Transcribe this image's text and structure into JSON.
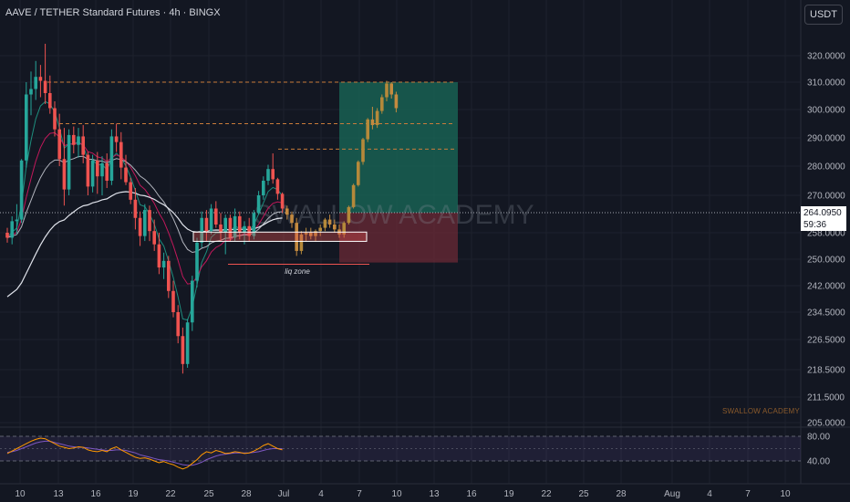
{
  "header": {
    "title": "AAVE / TETHER Standard Futures · 4h · BINGX",
    "currency": "USDT"
  },
  "price_tag": {
    "price": "264.0950",
    "countdown": "59:36"
  },
  "watermark": {
    "large": "SWALLOW ACADEMY",
    "small": "SWALLOW ACADEMY"
  },
  "annotation": {
    "liq_zone": "liq zone"
  },
  "colors": {
    "background": "#131722",
    "candle_up": "#26a69a",
    "candle_down": "#ef5350",
    "projection": "#b5893a",
    "ma_white": "#e0e3eb",
    "ma_red": "#c2185b",
    "ma_teal": "#1e8e7e",
    "target_zone": "#1a6b5a",
    "stop_zone": "#6b2a35",
    "level_lines": "#c97b3a",
    "rsi_line": "#ff9800",
    "rsi_ma": "#7e57c2"
  },
  "chart_data": {
    "type": "candlestick",
    "symbol": "AAVE / TETHER Standard Futures",
    "interval": "4h",
    "exchange": "BINGX",
    "y_ticks": [
      320,
      310,
      300,
      290,
      280,
      270,
      258,
      250,
      242,
      234.5,
      226.5,
      218.5,
      211.5,
      205
    ],
    "y_tick_labels": [
      "320.0000",
      "310.0000",
      "300.0000",
      "290.0000",
      "280.0000",
      "270.0000",
      "258.0000",
      "250.0000",
      "242.0000",
      "234.5000",
      "226.5000",
      "218.5000",
      "211.5000",
      "205.0000"
    ],
    "x_tick_labels": [
      "10",
      "13",
      "16",
      "19",
      "22",
      "25",
      "28",
      "Jul",
      "4",
      "7",
      "10",
      "13",
      "16",
      "19",
      "22",
      "25",
      "28",
      "Aug",
      "4",
      "7",
      "10"
    ],
    "last_price": 264.095,
    "horizontal_levels": [
      310,
      295,
      286
    ],
    "candles": [
      [
        258,
        259.5,
        255.0,
        256.5
      ],
      [
        256.5,
        263.0,
        254.5,
        261.5
      ],
      [
        261.5,
        267.0,
        257.5,
        262.0
      ],
      [
        262.0,
        282.5,
        261.0,
        282.0
      ],
      [
        282.0,
        310.0,
        279.5,
        305.5
      ],
      [
        305.5,
        314.0,
        298.0,
        307.5
      ],
      [
        307.5,
        318.0,
        303.5,
        312.0
      ],
      [
        312.0,
        316.5,
        304.5,
        310.5
      ],
      [
        310.5,
        324.5,
        302.0,
        306.0
      ],
      [
        306.0,
        312.5,
        298.5,
        300.5
      ],
      [
        300.5,
        303.0,
        290.5,
        293.0
      ],
      [
        293.0,
        298.5,
        280.0,
        282.5
      ],
      [
        282.5,
        293.5,
        266.5,
        272.0
      ],
      [
        272.0,
        293.0,
        270.0,
        291.0
      ],
      [
        291.0,
        294.0,
        284.5,
        287.5
      ],
      [
        287.5,
        293.5,
        283.0,
        290.5
      ],
      [
        290.5,
        294.5,
        281.0,
        284.0
      ],
      [
        284.0,
        285.0,
        270.0,
        273.0
      ],
      [
        273.0,
        284.0,
        271.0,
        282.0
      ],
      [
        282.0,
        285.0,
        270.5,
        276.5
      ],
      [
        276.5,
        283.5,
        270.0,
        281.0
      ],
      [
        281.0,
        284.5,
        272.5,
        275.0
      ],
      [
        275.0,
        293.0,
        273.5,
        290.5
      ],
      [
        290.5,
        295.0,
        285.0,
        288.5
      ],
      [
        288.5,
        292.0,
        275.5,
        279.5
      ],
      [
        279.5,
        284.0,
        273.5,
        274.5
      ],
      [
        274.5,
        276.0,
        267.0,
        268.5
      ],
      [
        268.5,
        272.5,
        259.0,
        262.5
      ],
      [
        262.5,
        264.5,
        254.0,
        257.0
      ],
      [
        257.0,
        267.0,
        255.5,
        265.0
      ],
      [
        265.0,
        266.5,
        255.5,
        258.5
      ],
      [
        258.5,
        262.0,
        252.5,
        254.5
      ],
      [
        254.5,
        258.0,
        245.5,
        247.5
      ],
      [
        247.5,
        252.0,
        244.0,
        249.5
      ],
      [
        249.5,
        251.0,
        238.5,
        240.5
      ],
      [
        240.5,
        243.5,
        233.0,
        234.5
      ],
      [
        234.5,
        236.5,
        225.5,
        227.5
      ],
      [
        227.5,
        230.0,
        217.5,
        220.0
      ],
      [
        220.0,
        232.5,
        219.0,
        231.5
      ],
      [
        231.5,
        245.0,
        229.0,
        243.5
      ],
      [
        243.5,
        256.5,
        241.5,
        255.0
      ],
      [
        255.0,
        264.5,
        253.5,
        262.5
      ],
      [
        262.5,
        265.0,
        255.5,
        258.5
      ],
      [
        258.5,
        267.0,
        257.5,
        265.5
      ],
      [
        265.5,
        268.0,
        259.5,
        260.5
      ],
      [
        260.5,
        264.0,
        255.5,
        258.0
      ],
      [
        258.0,
        263.5,
        251.5,
        262.5
      ],
      [
        262.5,
        263.5,
        255.5,
        256.5
      ],
      [
        256.5,
        265.5,
        255.5,
        263.0
      ],
      [
        263.0,
        264.5,
        256.0,
        258.0
      ],
      [
        258.0,
        261.5,
        254.5,
        260.0
      ],
      [
        260.0,
        262.5,
        255.5,
        257.0
      ],
      [
        257.0,
        265.0,
        256.0,
        264.0
      ],
      [
        264.0,
        271.5,
        263.5,
        270.0
      ],
      [
        270.0,
        276.5,
        268.5,
        275.0
      ],
      [
        275.0,
        280.5,
        273.5,
        279.0
      ],
      [
        279.0,
        284.5,
        274.0,
        275.5
      ],
      [
        275.5,
        276.0,
        268.5,
        270.5
      ],
      [
        270.5,
        271.0,
        264.0,
        265.5
      ]
    ],
    "projection": [
      [
        265.5,
        266.5,
        262.0,
        263.5
      ],
      [
        263.5,
        264.5,
        259.5,
        261.0
      ],
      [
        261.0,
        262.5,
        251.0,
        252.5
      ],
      [
        252.5,
        258.5,
        251.5,
        257.5
      ],
      [
        257.5,
        259.5,
        255.5,
        258.0
      ],
      [
        258.0,
        259.5,
        256.0,
        257.0
      ],
      [
        257.0,
        259.0,
        255.5,
        258.5
      ],
      [
        258.5,
        260.5,
        257.0,
        259.5
      ],
      [
        259.5,
        262.5,
        258.5,
        262.0
      ],
      [
        262.0,
        263.5,
        259.5,
        260.5
      ],
      [
        260.5,
        262.0,
        258.0,
        259.0
      ],
      [
        259.0,
        260.5,
        256.5,
        257.5
      ],
      [
        257.5,
        261.5,
        256.5,
        261.0
      ],
      [
        261.0,
        266.5,
        260.5,
        266.0
      ],
      [
        266.0,
        274.0,
        265.5,
        273.5
      ],
      [
        273.5,
        282.0,
        273.0,
        281.5
      ],
      [
        281.5,
        290.0,
        280.5,
        289.5
      ],
      [
        289.5,
        297.0,
        288.5,
        296.5
      ],
      [
        296.5,
        301.0,
        293.0,
        294.5
      ],
      [
        294.5,
        300.5,
        293.5,
        299.5
      ],
      [
        299.5,
        305.5,
        298.5,
        304.5
      ],
      [
        304.5,
        310.5,
        303.0,
        309.5
      ],
      [
        309.5,
        310.0,
        304.0,
        305.5
      ],
      [
        305.5,
        306.5,
        299.0,
        300.5
      ]
    ],
    "rsi": {
      "levels": [
        80,
        40
      ],
      "level_labels": [
        "80.00",
        "40.00"
      ],
      "values": [
        52,
        56,
        60,
        64,
        68,
        72,
        75,
        77,
        76,
        72,
        68,
        64,
        62,
        60,
        61,
        63,
        62,
        58,
        56,
        55,
        57,
        55,
        60,
        63,
        58,
        54,
        50,
        46,
        44,
        45,
        43,
        40,
        37,
        39,
        36,
        34,
        30,
        27,
        30,
        36,
        42,
        50,
        55,
        53,
        57,
        55,
        52,
        53,
        55,
        54,
        52,
        53,
        56,
        60,
        65,
        68,
        64,
        60,
        58
      ],
      "ma_values": [
        54,
        55,
        57,
        60,
        63,
        66,
        69,
        71,
        72,
        72,
        70,
        68,
        66,
        64,
        63,
        62,
        62,
        61,
        60,
        59,
        58,
        57,
        57,
        58,
        58,
        57,
        55,
        53,
        50,
        48,
        46,
        44,
        42,
        41,
        40,
        38,
        36,
        34,
        33,
        33,
        35,
        38,
        42,
        45,
        48,
        50,
        51,
        52,
        53,
        53,
        53,
        53,
        54,
        55,
        57,
        59,
        60,
        60,
        60
      ]
    }
  }
}
